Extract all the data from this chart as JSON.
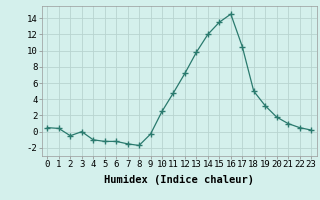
{
  "x": [
    0,
    1,
    2,
    3,
    4,
    5,
    6,
    7,
    8,
    9,
    10,
    11,
    12,
    13,
    14,
    15,
    16,
    17,
    18,
    19,
    20,
    21,
    22,
    23
  ],
  "y": [
    0.5,
    0.4,
    -0.5,
    0.0,
    -1.0,
    -1.2,
    -1.2,
    -1.5,
    -1.7,
    -0.3,
    2.5,
    4.8,
    7.2,
    9.8,
    12.0,
    13.5,
    14.5,
    10.5,
    5.0,
    3.2,
    1.8,
    1.0,
    0.5,
    0.2
  ],
  "line_color": "#2a7a6e",
  "marker": "+",
  "marker_size": 4,
  "bg_color": "#d4f0ec",
  "grid_color": "#b8d4d0",
  "xlabel": "Humidex (Indice chaleur)",
  "ylim": [
    -3,
    15.5
  ],
  "yticks": [
    -2,
    0,
    2,
    4,
    6,
    8,
    10,
    12,
    14
  ],
  "xtick_labels": [
    "0",
    "1",
    "2",
    "3",
    "4",
    "5",
    "6",
    "7",
    "8",
    "9",
    "10",
    "11",
    "12",
    "13",
    "14",
    "15",
    "16",
    "17",
    "18",
    "19",
    "20",
    "21",
    "22",
    "23"
  ],
  "xlabel_fontsize": 7.5,
  "tick_fontsize": 6.5
}
